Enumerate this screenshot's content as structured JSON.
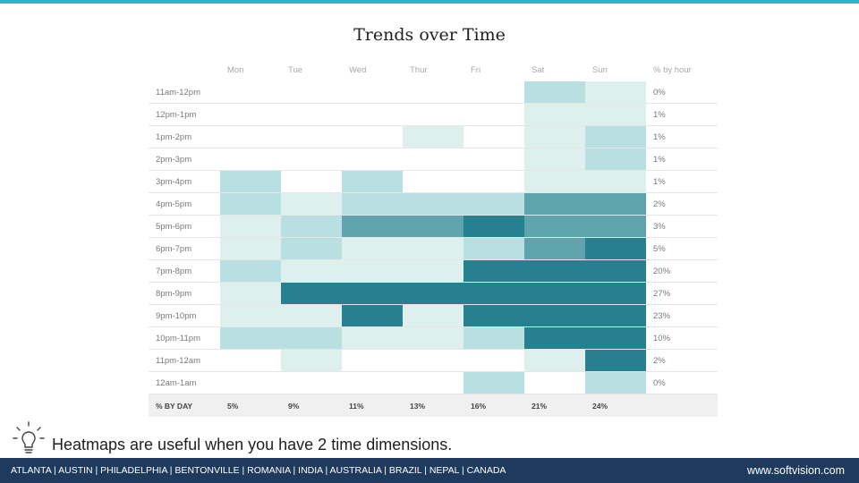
{
  "slide": {
    "title": "Trends over Time",
    "tip": "Heatmaps are useful when you have 2 time dimensions.",
    "tip_icon": "lightbulb-icon"
  },
  "footer": {
    "cities": "ATLANTA | AUSTIN | PHILADELPHIA | BENTONVILLE | ROMANIA | INDIA | AUSTRALIA | BRAZIL | NEPAL | CANADA",
    "website": "www.softvision.com"
  },
  "colors": {
    "level0": "#ffffff",
    "level1": "#ddf0ed",
    "level2": "#b8e0e2",
    "level3": "#5fa3ad",
    "level4": "#27808f",
    "accent_stripe": "#2bb3c9",
    "footer_bg": "#1e3a5c"
  },
  "chart_data": {
    "type": "heatmap",
    "title": "Trends over Time",
    "columns": [
      "Mon",
      "Tue",
      "Wed",
      "Thur",
      "Fri",
      "Sat",
      "Sun"
    ],
    "total_column_label": "% by hour",
    "footer_label": "% BY DAY",
    "day_totals": [
      "5%",
      "9%",
      "11%",
      "13%",
      "16%",
      "21%",
      "24%"
    ],
    "rows": [
      {
        "label": "11am-12pm",
        "levels": [
          0,
          0,
          0,
          0,
          0,
          2,
          1
        ],
        "total": "0%"
      },
      {
        "label": "12pm-1pm",
        "levels": [
          0,
          0,
          0,
          0,
          0,
          1,
          1
        ],
        "total": "1%"
      },
      {
        "label": "1pm-2pm",
        "levels": [
          0,
          0,
          0,
          1,
          0,
          1,
          2
        ],
        "total": "1%"
      },
      {
        "label": "2pm-3pm",
        "levels": [
          0,
          0,
          0,
          0,
          0,
          1,
          2
        ],
        "total": "1%"
      },
      {
        "label": "3pm-4pm",
        "levels": [
          2,
          0,
          2,
          0,
          0,
          1,
          1
        ],
        "total": "1%"
      },
      {
        "label": "4pm-5pm",
        "levels": [
          2,
          1,
          2,
          2,
          2,
          3,
          3
        ],
        "total": "2%"
      },
      {
        "label": "5pm-6pm",
        "levels": [
          1,
          2,
          3,
          3,
          4,
          3,
          3
        ],
        "total": "3%"
      },
      {
        "label": "6pm-7pm",
        "levels": [
          1,
          2,
          1,
          1,
          2,
          3,
          4
        ],
        "total": "5%"
      },
      {
        "label": "7pm-8pm",
        "levels": [
          2,
          1,
          1,
          1,
          4,
          4,
          4
        ],
        "total": "20%"
      },
      {
        "label": "8pm-9pm",
        "levels": [
          1,
          4,
          4,
          4,
          4,
          4,
          4
        ],
        "total": "27%"
      },
      {
        "label": "9pm-10pm",
        "levels": [
          1,
          1,
          4,
          1,
          4,
          4,
          4
        ],
        "total": "23%"
      },
      {
        "label": "10pm-11pm",
        "levels": [
          2,
          2,
          1,
          1,
          2,
          4,
          4
        ],
        "total": "10%"
      },
      {
        "label": "11pm-12am",
        "levels": [
          0,
          1,
          0,
          0,
          0,
          1,
          4
        ],
        "total": "2%"
      },
      {
        "label": "12am-1am",
        "levels": [
          0,
          0,
          0,
          0,
          2,
          0,
          2
        ],
        "total": "0%"
      }
    ],
    "levels_legend": "0 = none, 1 = low, 2 = medium-low, 3 = medium-high, 4 = high"
  }
}
